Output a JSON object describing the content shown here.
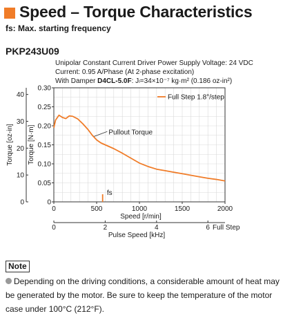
{
  "header": {
    "title": "Speed – Torque Characteristics",
    "subtitle": "fs: Max. starting frequency",
    "accent_color": "#f07c28"
  },
  "model": "PKP243U09",
  "conditions": {
    "line1": "Unipolar Constant Current Driver  Power Supply Voltage: 24 VDC",
    "line2": "Current: 0.95 A/Phase (At 2-phase excitation)",
    "line3_prefix": "With Damper ",
    "line3_damper": "D4CL-5.0F",
    "line3_suffix": ": Jₗ=34×10⁻⁷ kg·m² (0.186 oz-in²)"
  },
  "note": {
    "label": "Note",
    "text": "Depending on the driving conditions, a considerable amount of heat may be generated by the motor. Be sure to keep the temperature of the motor case under 100°C (212°F)."
  },
  "chart_data": {
    "type": "line",
    "xlabel": "Speed [r/min]",
    "ylabel": "Torque [N·m]",
    "ylabel_secondary": "Torque [oz-in]",
    "xlim": [
      0,
      2000
    ],
    "ylim": [
      0,
      0.3
    ],
    "ylim_secondary": [
      0,
      42.48
    ],
    "x_ticks": [
      "0",
      "500",
      "1000",
      "1500",
      "2000"
    ],
    "y_ticks": [
      "0",
      "0.05",
      "0.10",
      "0.15",
      "0.20",
      "0.25",
      "0.30"
    ],
    "y2_ticks": [
      "0",
      "10",
      "20",
      "30",
      "40"
    ],
    "x2label": "Pulse Speed [kHz]",
    "x2_ticks": [
      "0",
      "2",
      "4",
      "6"
    ],
    "x2_suffix": "Full Step",
    "x2_max": 6.667,
    "grid": true,
    "legend_position": "top-right",
    "series": [
      {
        "name": "Full Step 1.8°/step",
        "color": "#f07c28",
        "x": [
          0,
          20,
          60,
          100,
          140,
          180,
          220,
          280,
          340,
          400,
          450,
          500,
          550,
          600,
          700,
          800,
          900,
          1000,
          1100,
          1200,
          1300,
          1400,
          1500,
          1600,
          1700,
          1800,
          1900,
          2000
        ],
        "y": [
          0.195,
          0.215,
          0.228,
          0.222,
          0.219,
          0.226,
          0.225,
          0.218,
          0.205,
          0.19,
          0.175,
          0.163,
          0.155,
          0.15,
          0.14,
          0.128,
          0.115,
          0.102,
          0.093,
          0.086,
          0.082,
          0.078,
          0.074,
          0.07,
          0.066,
          0.062,
          0.059,
          0.055
        ]
      }
    ],
    "annotations": [
      {
        "text": "Pullout Torque",
        "x": 640,
        "y": 0.185
      },
      {
        "text": "fs",
        "x": 620,
        "y": 0.015
      }
    ],
    "fs_x": 570
  }
}
